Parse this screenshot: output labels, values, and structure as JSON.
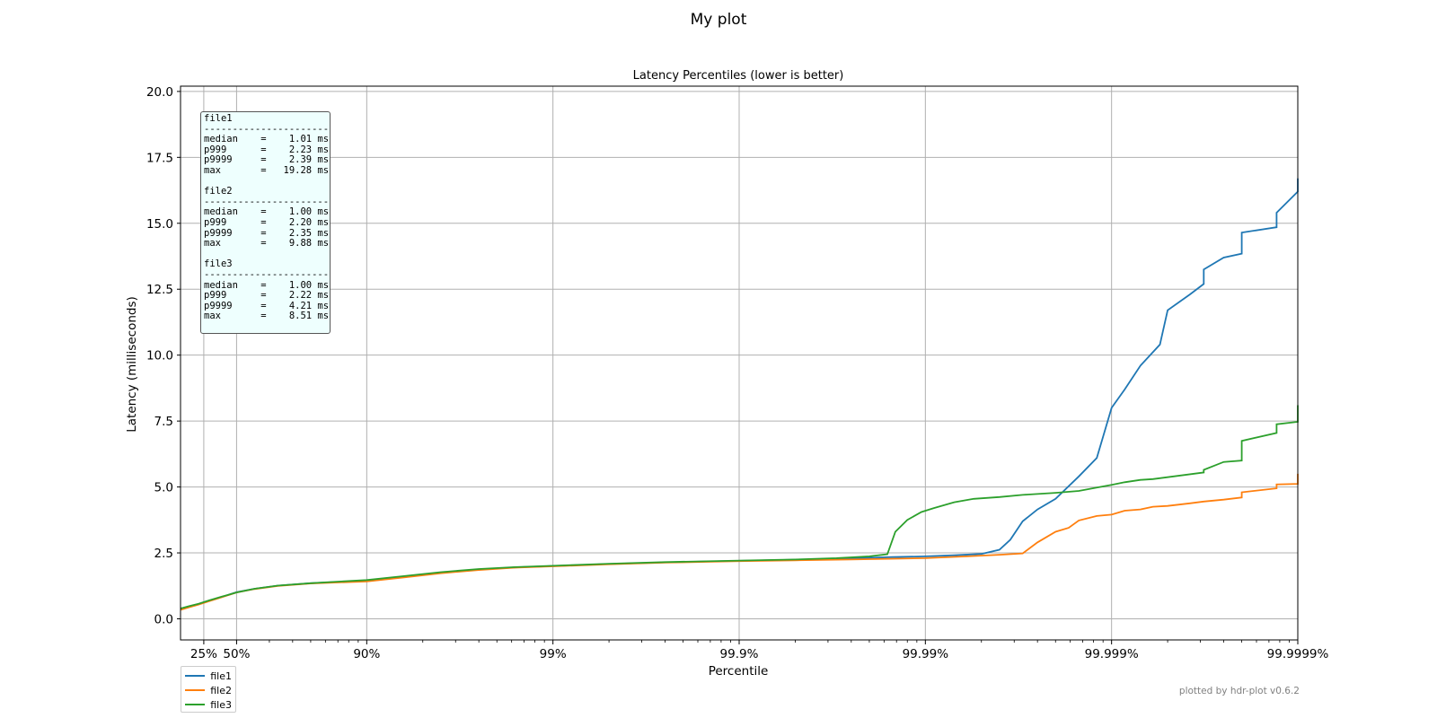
{
  "figure": {
    "suptitle": "My plot",
    "credit": "plotted by hdr-plot v0.6.2"
  },
  "stats": [
    {
      "name": "file1",
      "separator": "----------------------",
      "rows": [
        {
          "label": "median",
          "value": "1.01 ms"
        },
        {
          "label": "p999",
          "value": "2.23 ms"
        },
        {
          "label": "p9999",
          "value": "2.39 ms"
        },
        {
          "label": "max",
          "value": "19.28 ms"
        }
      ]
    },
    {
      "name": "file2",
      "separator": "----------------------",
      "rows": [
        {
          "label": "median",
          "value": "1.00 ms"
        },
        {
          "label": "p999",
          "value": "2.20 ms"
        },
        {
          "label": "p9999",
          "value": "2.35 ms"
        },
        {
          "label": "max",
          "value": "9.88 ms"
        }
      ]
    },
    {
      "name": "file3",
      "separator": "----------------------",
      "rows": [
        {
          "label": "median",
          "value": "1.00 ms"
        },
        {
          "label": "p999",
          "value": "2.22 ms"
        },
        {
          "label": "p9999",
          "value": "4.21 ms"
        },
        {
          "label": "max",
          "value": "8.51 ms"
        }
      ]
    }
  ],
  "chart_data": {
    "type": "line",
    "title": "Latency Percentiles (lower is better)",
    "xlabel": "Percentile",
    "ylabel": "Latency (milliseconds)",
    "x_scale": "log of 1/(1-percentile)",
    "x_ticks": [
      "25%",
      "50%",
      "90%",
      "99%",
      "99.9%",
      "99.99%",
      "99.999%",
      "99.9999%"
    ],
    "x_tick_percentiles": [
      25,
      50,
      90,
      99,
      99.9,
      99.99,
      99.999,
      99.9999
    ],
    "xlim_percentile": [
      0,
      99.9999
    ],
    "ylim": [
      -0.8,
      20.2
    ],
    "y_ticks": [
      0.0,
      2.5,
      5.0,
      7.5,
      10.0,
      12.5,
      15.0,
      17.5,
      20.0
    ],
    "y_tick_labels": [
      "0.0",
      "2.5",
      "5.0",
      "7.5",
      "10.0",
      "12.5",
      "15.0",
      "17.5",
      "20.0"
    ],
    "grid": true,
    "legend_position": "bottom-left outside",
    "series": [
      {
        "name": "file1",
        "color": "#1f77b4",
        "points": [
          [
            0,
            0.37
          ],
          [
            10,
            0.47
          ],
          [
            20,
            0.56
          ],
          [
            30,
            0.69
          ],
          [
            40,
            0.83
          ],
          [
            50,
            1.01
          ],
          [
            60,
            1.14
          ],
          [
            70,
            1.26
          ],
          [
            80,
            1.35
          ],
          [
            90,
            1.45
          ],
          [
            93.7,
            1.6
          ],
          [
            96.0,
            1.75
          ],
          [
            97.5,
            1.87
          ],
          [
            98.4,
            1.95
          ],
          [
            99,
            2.0
          ],
          [
            99.5,
            2.08
          ],
          [
            99.75,
            2.14
          ],
          [
            99.9,
            2.2
          ],
          [
            99.95,
            2.24
          ],
          [
            99.975,
            2.29
          ],
          [
            99.985,
            2.34
          ],
          [
            99.99,
            2.37
          ],
          [
            99.993,
            2.41
          ],
          [
            99.995,
            2.46
          ],
          [
            99.996,
            2.62
          ],
          [
            99.9965,
            3.0
          ],
          [
            99.997,
            3.7
          ],
          [
            99.9975,
            4.15
          ],
          [
            99.998,
            4.55
          ],
          [
            99.9985,
            5.4
          ],
          [
            99.9988,
            6.1
          ],
          [
            99.999,
            8.0
          ],
          [
            99.99915,
            8.7
          ],
          [
            99.9993,
            9.6
          ],
          [
            99.99945,
            10.4
          ],
          [
            99.9995,
            11.7
          ],
          [
            99.99962,
            12.3
          ],
          [
            99.99968,
            12.7
          ],
          [
            99.99968,
            13.25
          ],
          [
            99.99975,
            13.7
          ],
          [
            99.9998,
            13.85
          ],
          [
            99.9998,
            14.65
          ],
          [
            99.99987,
            14.85
          ],
          [
            99.99987,
            15.4
          ],
          [
            99.9999,
            16.2
          ],
          [
            99.9999,
            16.7
          ]
        ]
      },
      {
        "name": "file2",
        "color": "#ff7f0e",
        "points": [
          [
            0,
            0.34
          ],
          [
            10,
            0.44
          ],
          [
            20,
            0.54
          ],
          [
            30,
            0.67
          ],
          [
            40,
            0.82
          ],
          [
            50,
            1.0
          ],
          [
            60,
            1.13
          ],
          [
            70,
            1.25
          ],
          [
            80,
            1.34
          ],
          [
            90,
            1.42
          ],
          [
            93.7,
            1.57
          ],
          [
            96.0,
            1.73
          ],
          [
            97.5,
            1.85
          ],
          [
            98.4,
            1.94
          ],
          [
            99,
            1.99
          ],
          [
            99.5,
            2.07
          ],
          [
            99.75,
            2.13
          ],
          [
            99.9,
            2.19
          ],
          [
            99.95,
            2.22
          ],
          [
            99.975,
            2.25
          ],
          [
            99.99,
            2.3
          ],
          [
            99.994,
            2.37
          ],
          [
            99.996,
            2.43
          ],
          [
            99.997,
            2.48
          ],
          [
            99.9975,
            2.9
          ],
          [
            99.998,
            3.3
          ],
          [
            99.9983,
            3.45
          ],
          [
            99.9985,
            3.73
          ],
          [
            99.9988,
            3.9
          ],
          [
            99.999,
            3.95
          ],
          [
            99.99915,
            4.1
          ],
          [
            99.9993,
            4.15
          ],
          [
            99.9994,
            4.25
          ],
          [
            99.9995,
            4.28
          ],
          [
            99.99962,
            4.38
          ],
          [
            99.99968,
            4.45
          ],
          [
            99.99975,
            4.52
          ],
          [
            99.9998,
            4.6
          ],
          [
            99.9998,
            4.8
          ],
          [
            99.99987,
            4.95
          ],
          [
            99.99987,
            5.1
          ],
          [
            99.9999,
            5.12
          ],
          [
            99.9999,
            5.5
          ]
        ]
      },
      {
        "name": "file3",
        "color": "#2ca02c",
        "points": [
          [
            0,
            0.39
          ],
          [
            10,
            0.48
          ],
          [
            20,
            0.57
          ],
          [
            30,
            0.7
          ],
          [
            40,
            0.84
          ],
          [
            50,
            1.0
          ],
          [
            60,
            1.14
          ],
          [
            70,
            1.26
          ],
          [
            80,
            1.35
          ],
          [
            90,
            1.47
          ],
          [
            93.7,
            1.62
          ],
          [
            96.0,
            1.77
          ],
          [
            97.5,
            1.89
          ],
          [
            98.4,
            1.96
          ],
          [
            99,
            2.01
          ],
          [
            99.5,
            2.09
          ],
          [
            99.75,
            2.15
          ],
          [
            99.9,
            2.21
          ],
          [
            99.95,
            2.25
          ],
          [
            99.97,
            2.3
          ],
          [
            99.98,
            2.37
          ],
          [
            99.984,
            2.45
          ],
          [
            99.9855,
            3.3
          ],
          [
            99.9875,
            3.75
          ],
          [
            99.9895,
            4.05
          ],
          [
            99.991,
            4.2
          ],
          [
            99.993,
            4.42
          ],
          [
            99.9945,
            4.55
          ],
          [
            99.996,
            4.62
          ],
          [
            99.997,
            4.7
          ],
          [
            99.998,
            4.78
          ],
          [
            99.9985,
            4.85
          ],
          [
            99.9988,
            4.98
          ],
          [
            99.999,
            5.08
          ],
          [
            99.99915,
            5.18
          ],
          [
            99.9993,
            5.27
          ],
          [
            99.9994,
            5.3
          ],
          [
            99.99968,
            5.55
          ],
          [
            99.99968,
            5.65
          ],
          [
            99.99975,
            5.95
          ],
          [
            99.9998,
            6.0
          ],
          [
            99.9998,
            6.75
          ],
          [
            99.99987,
            7.05
          ],
          [
            99.99987,
            7.38
          ],
          [
            99.9999,
            7.47
          ],
          [
            99.9999,
            8.1
          ]
        ]
      }
    ]
  }
}
